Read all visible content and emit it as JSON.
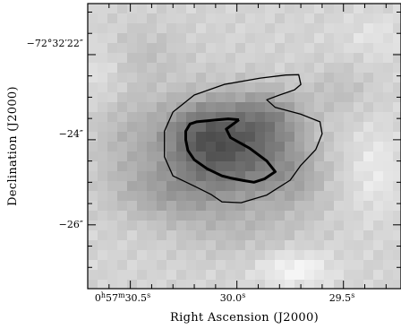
{
  "chart_data": {
    "type": "heatmap",
    "title": "",
    "xlabel": "Right Ascension (J2000)",
    "ylabel": "Declination (J2000)",
    "x_ticks": [
      {
        "label": "0h57m30.5s",
        "h": "0",
        "m": "57",
        "s": "30.5",
        "value": 30.5
      },
      {
        "label": "30.0s",
        "s": "30.0",
        "value": 30.0
      },
      {
        "label": "29.5s",
        "s": "29.5",
        "value": 29.5
      }
    ],
    "y_ticks": [
      {
        "label": "−72°32′22″",
        "d": "−72°",
        "m": "32′",
        "s": "22″",
        "value": 22
      },
      {
        "label": "−24″",
        "s": "−24″",
        "value": 24
      },
      {
        "label": "−26″",
        "s": "−26″",
        "value": 26
      }
    ],
    "xlim": [
      30.7,
      29.23
    ],
    "ylim": [
      20.8,
      27.5
    ],
    "colormap": "grayscale (dark = high intensity)",
    "contours": [
      {
        "level": "outer",
        "stroke": "thin",
        "points": [
          [
            29.89,
            22.55
          ],
          [
            29.77,
            22.48
          ],
          [
            29.71,
            22.47
          ],
          [
            29.7,
            22.7
          ],
          [
            29.73,
            22.83
          ],
          [
            29.8,
            22.95
          ],
          [
            29.86,
            23.06
          ],
          [
            29.82,
            23.24
          ],
          [
            29.7,
            23.4
          ],
          [
            29.61,
            23.58
          ],
          [
            29.6,
            23.86
          ],
          [
            29.63,
            24.23
          ],
          [
            29.7,
            24.6
          ],
          [
            29.75,
            24.95
          ],
          [
            29.86,
            25.3
          ],
          [
            29.98,
            25.48
          ],
          [
            30.07,
            25.46
          ],
          [
            30.12,
            25.29
          ],
          [
            30.2,
            25.09
          ],
          [
            30.3,
            24.85
          ],
          [
            30.34,
            24.4
          ],
          [
            30.34,
            23.8
          ],
          [
            30.3,
            23.35
          ],
          [
            30.2,
            22.95
          ],
          [
            30.06,
            22.7
          ],
          [
            29.89,
            22.55
          ]
        ]
      },
      {
        "level": "inner",
        "stroke": "thick",
        "points": [
          [
            29.99,
            23.53
          ],
          [
            30.05,
            23.75
          ],
          [
            30.03,
            23.95
          ],
          [
            29.94,
            24.2
          ],
          [
            29.86,
            24.5
          ],
          [
            29.82,
            24.75
          ],
          [
            29.87,
            24.92
          ],
          [
            29.92,
            25.0
          ],
          [
            29.97,
            24.96
          ],
          [
            30.03,
            24.9
          ],
          [
            30.07,
            24.85
          ],
          [
            30.14,
            24.68
          ],
          [
            30.2,
            24.47
          ],
          [
            30.23,
            24.25
          ],
          [
            30.24,
            24.0
          ],
          [
            30.24,
            23.8
          ],
          [
            30.22,
            23.63
          ],
          [
            30.19,
            23.58
          ],
          [
            30.09,
            23.53
          ],
          [
            30.04,
            23.51
          ],
          [
            29.99,
            23.53
          ]
        ]
      }
    ],
    "grid": false,
    "legend": "none"
  }
}
